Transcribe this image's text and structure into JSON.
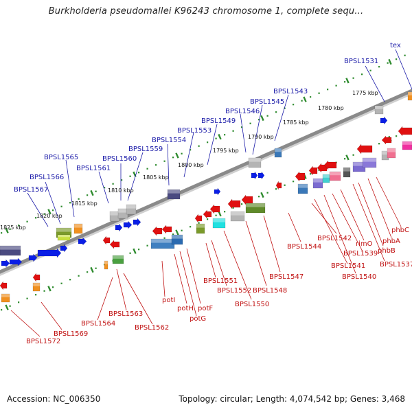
{
  "title": "Burkholderia pseudomallei K96243 chromosome 1, complete sequ...",
  "footer": {
    "accession": "Accession: NC_006350",
    "summary": "Topology: circular; Length: 4,074,542 bp; Genes: 3,468"
  },
  "colors": {
    "backbone": "#8a8a8a",
    "tick_track": "#2e8b2e",
    "label_top": "#1a1aa8",
    "label_bottom": "#c01010",
    "forward_gene": "#0a1ee6",
    "reverse_gene": "#e01010"
  },
  "scale_labels": [
    "1775 kbp",
    "1780 kbp",
    "1785 kbp",
    "1790 kbp",
    "1795 kbp",
    "1800 kbp",
    "1805 kbp",
    "1810 kbp",
    "1815 kbp",
    "1820 kbp",
    "1825 kbp"
  ],
  "top_labels": [
    "tex",
    "BPSL1531",
    "BPSL1543",
    "BPSL1545",
    "BPSL1546",
    "BPSL1549",
    "BPSL1553",
    "BPSL1554",
    "BPSL1559",
    "BPSL1560",
    "BPSL1561",
    "BPSL1565",
    "BPSL1566",
    "BPSL1567"
  ],
  "bottom_labels": [
    "phbC",
    "phbA",
    "phbB",
    "BPSL1537",
    "rimO",
    "BPSL1539",
    "BPSL1540",
    "BPSL1541",
    "BPSL1542",
    "BPSL1544",
    "BPSL1547",
    "BPSL1548",
    "BPSL1550",
    "BPSL1551",
    "BPSL1552",
    "potF",
    "potG",
    "potH",
    "potI",
    "BPSL1562",
    "BPSL1563",
    "BPSL1564",
    "BPSL1569",
    "BPSL1572"
  ]
}
